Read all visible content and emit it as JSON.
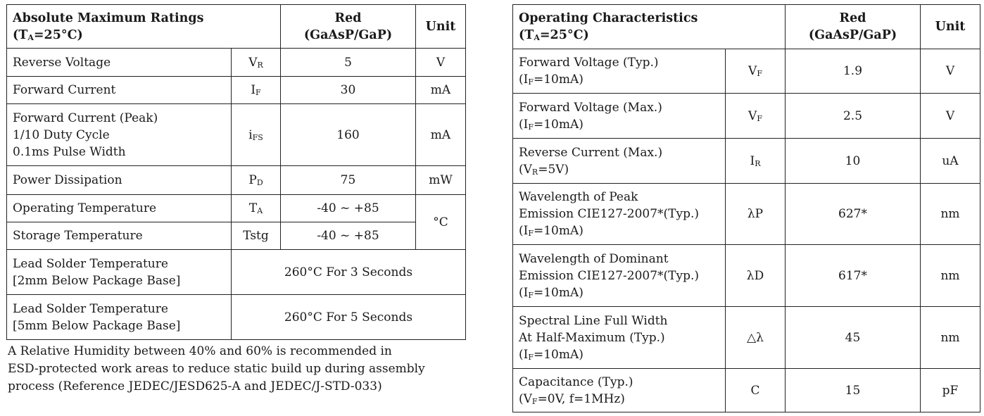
{
  "left_table": {
    "header": {
      "title": "Absolute Maximum Ratings",
      "condition_main": "(T",
      "condition_sub": "A",
      "condition_rest": "=25°C)",
      "col_red": "Red",
      "col_material": "(GaAsP/GaP)",
      "col_unit": "Unit"
    },
    "rows": [
      {
        "param": "Reverse Voltage",
        "sym": "V",
        "sym_sub": "R",
        "value": "5",
        "unit": "V"
      },
      {
        "param": "Forward Current",
        "sym": "I",
        "sym_sub": "F",
        "value": "30",
        "unit": "mA"
      },
      {
        "param_lines": [
          "Forward Current (Peak)",
          "1/10 Duty Cycle",
          "0.1ms Pulse Width"
        ],
        "sym": "i",
        "sym_sub": "FS",
        "value": "160",
        "unit": "mA"
      },
      {
        "param": "Power Dissipation",
        "sym": "P",
        "sym_sub": "D",
        "value": "75",
        "unit": "mW"
      },
      {
        "param": "Operating Temperature",
        "sym": "T",
        "sym_sub": "A",
        "value": "-40 ~ +85",
        "unit": "°C"
      },
      {
        "param": "Storage Temperature",
        "sym": "Tstg",
        "value": "-40 ~ +85"
      },
      {
        "param_lines": [
          "Lead Solder Temperature",
          "[2mm Below Package Base]"
        ],
        "value": "260°C For 3 Seconds"
      },
      {
        "param_lines": [
          "Lead Solder Temperature",
          "[5mm Below Package Base]"
        ],
        "value": "260°C For 5 Seconds"
      }
    ],
    "note_lines": [
      "A Relative Humidity between 40% and 60% is recommended in",
      "ESD-protected work areas to reduce static build up during assembly",
      "process (Reference JEDEC/JESD625-A and JEDEC/J-STD-033)"
    ]
  },
  "right_table": {
    "header": {
      "title": "Operating Characteristics",
      "condition_main": "(T",
      "condition_sub": "A",
      "condition_rest": "=25°C)",
      "col_red": "Red",
      "col_material": "(GaAsP/GaP)",
      "col_unit": "Unit"
    },
    "rows": [
      {
        "l1": "Forward Voltage (Typ.)",
        "l2a": "(I",
        "l2s": "F",
        "l2b": "=10mA)",
        "sym": "V",
        "sym_sub": "F",
        "value": "1.9",
        "unit": "V"
      },
      {
        "l1": "Forward Voltage (Max.)",
        "l2a": "(I",
        "l2s": "F",
        "l2b": "=10mA)",
        "sym": "V",
        "sym_sub": "F",
        "value": "2.5",
        "unit": "V"
      },
      {
        "l1": "Reverse Current (Max.)",
        "l2a": "(V",
        "l2s": "R",
        "l2b": "=5V)",
        "sym": "I",
        "sym_sub": "R",
        "value": "10",
        "unit": "uA"
      },
      {
        "l1": "Wavelength of Peak",
        "l1b": "Emission CIE127-2007*(Typ.)",
        "l2a": "(I",
        "l2s": "F",
        "l2b": "=10mA)",
        "sym": "λP",
        "value": "627*",
        "unit": "nm"
      },
      {
        "l1": "Wavelength of Dominant",
        "l1b": "Emission CIE127-2007*(Typ.)",
        "l2a": "(I",
        "l2s": "F",
        "l2b": "=10mA)",
        "sym": "λD",
        "value": "617*",
        "unit": "nm"
      },
      {
        "l1": "Spectral Line Full Width",
        "l1b": "At Half-Maximum (Typ.)",
        "l2a": "(I",
        "l2s": "F",
        "l2b": "=10mA)",
        "sym": "△λ",
        "value": "45",
        "unit": "nm"
      },
      {
        "l1": "Capacitance (Typ.)",
        "l2a": "(V",
        "l2s": "F",
        "l2b": "=0V, f=1MHz)",
        "sym": "C",
        "value": "15",
        "unit": "pF"
      }
    ]
  }
}
